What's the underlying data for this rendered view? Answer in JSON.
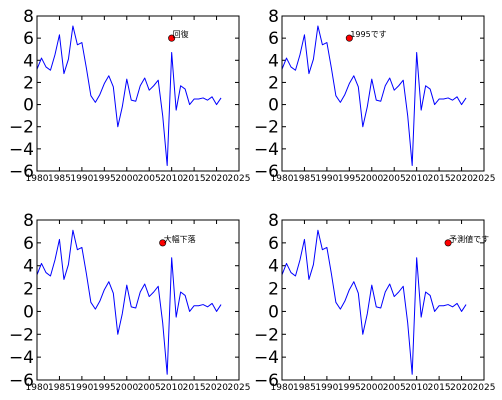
{
  "colors": {
    "line": "#0000ff",
    "marker": "#ff0000",
    "marker_edge": "#000000",
    "axes": "#000000",
    "background": "#ffffff"
  },
  "chart_data": [
    {
      "type": "line",
      "title": "",
      "xlabel": "",
      "ylabel": "",
      "xlim": [
        1980,
        2025
      ],
      "ylim": [
        -6,
        8
      ],
      "xticks": [
        "1980",
        "1985",
        "1990",
        "1995",
        "2000",
        "2005",
        "2010",
        "2015",
        "2020",
        "2025"
      ],
      "yticks": [
        "8",
        "6",
        "4",
        "2",
        "0",
        "−2",
        "−4",
        "−6"
      ],
      "grid": false,
      "legend": "none",
      "x": [
        1980,
        1981,
        1982,
        1983,
        1984,
        1985,
        1986,
        1987,
        1988,
        1989,
        1990,
        1991,
        1992,
        1993,
        1994,
        1995,
        1996,
        1997,
        1998,
        1999,
        2000,
        2001,
        2002,
        2003,
        2004,
        2005,
        2006,
        2007,
        2008,
        2009,
        2010,
        2011,
        2012,
        2013,
        2014,
        2015,
        2016,
        2017,
        2018,
        2019,
        2020,
        2021
      ],
      "series": [
        {
          "values": [
            3.2,
            4.2,
            3.4,
            3.1,
            4.5,
            6.3,
            2.8,
            4.1,
            7.1,
            5.4,
            5.6,
            3.3,
            0.8,
            0.2,
            0.9,
            1.9,
            2.6,
            1.6,
            -2.0,
            -0.2,
            2.3,
            0.4,
            0.3,
            1.7,
            2.4,
            1.3,
            1.7,
            2.2,
            -1.0,
            -5.5,
            4.7,
            -0.5,
            1.7,
            1.4,
            0.0,
            0.5,
            0.5,
            0.6,
            0.4,
            0.7,
            0.0,
            0.6
          ]
        }
      ],
      "annotation": {
        "x": 2010,
        "y": 6,
        "text": "回復"
      }
    },
    {
      "type": "line",
      "title": "",
      "xlabel": "",
      "ylabel": "",
      "xlim": [
        1980,
        2025
      ],
      "ylim": [
        -6,
        8
      ],
      "xticks": [
        "1980",
        "1985",
        "1990",
        "1995",
        "2000",
        "2005",
        "2010",
        "2015",
        "2020",
        "2025"
      ],
      "yticks": [
        "8",
        "6",
        "4",
        "2",
        "0",
        "−2",
        "−4",
        "−6"
      ],
      "grid": false,
      "legend": "none",
      "x": [
        1980,
        1981,
        1982,
        1983,
        1984,
        1985,
        1986,
        1987,
        1988,
        1989,
        1990,
        1991,
        1992,
        1993,
        1994,
        1995,
        1996,
        1997,
        1998,
        1999,
        2000,
        2001,
        2002,
        2003,
        2004,
        2005,
        2006,
        2007,
        2008,
        2009,
        2010,
        2011,
        2012,
        2013,
        2014,
        2015,
        2016,
        2017,
        2018,
        2019,
        2020,
        2021
      ],
      "series": [
        {
          "values": [
            3.2,
            4.2,
            3.4,
            3.1,
            4.5,
            6.3,
            2.8,
            4.1,
            7.1,
            5.4,
            5.6,
            3.3,
            0.8,
            0.2,
            0.9,
            1.9,
            2.6,
            1.6,
            -2.0,
            -0.2,
            2.3,
            0.4,
            0.3,
            1.7,
            2.4,
            1.3,
            1.7,
            2.2,
            -1.0,
            -5.5,
            4.7,
            -0.5,
            1.7,
            1.4,
            0.0,
            0.5,
            0.5,
            0.6,
            0.4,
            0.7,
            0.0,
            0.6
          ]
        }
      ],
      "annotation": {
        "x": 1995,
        "y": 6,
        "text": "1995です"
      }
    },
    {
      "type": "line",
      "title": "",
      "xlabel": "",
      "ylabel": "",
      "xlim": [
        1980,
        2025
      ],
      "ylim": [
        -6,
        8
      ],
      "xticks": [
        "1980",
        "1985",
        "1990",
        "1995",
        "2000",
        "2005",
        "2010",
        "2015",
        "2020",
        "2025"
      ],
      "yticks": [
        "8",
        "6",
        "4",
        "2",
        "0",
        "−2",
        "−4",
        "−6"
      ],
      "grid": false,
      "legend": "none",
      "x": [
        1980,
        1981,
        1982,
        1983,
        1984,
        1985,
        1986,
        1987,
        1988,
        1989,
        1990,
        1991,
        1992,
        1993,
        1994,
        1995,
        1996,
        1997,
        1998,
        1999,
        2000,
        2001,
        2002,
        2003,
        2004,
        2005,
        2006,
        2007,
        2008,
        2009,
        2010,
        2011,
        2012,
        2013,
        2014,
        2015,
        2016,
        2017,
        2018,
        2019,
        2020,
        2021
      ],
      "series": [
        {
          "values": [
            3.2,
            4.2,
            3.4,
            3.1,
            4.5,
            6.3,
            2.8,
            4.1,
            7.1,
            5.4,
            5.6,
            3.3,
            0.8,
            0.2,
            0.9,
            1.9,
            2.6,
            1.6,
            -2.0,
            -0.2,
            2.3,
            0.4,
            0.3,
            1.7,
            2.4,
            1.3,
            1.7,
            2.2,
            -1.0,
            -5.5,
            4.7,
            -0.5,
            1.7,
            1.4,
            0.0,
            0.5,
            0.5,
            0.6,
            0.4,
            0.7,
            0.0,
            0.6
          ]
        }
      ],
      "annotation": {
        "x": 2008,
        "y": 6,
        "text": "大幅下落"
      }
    },
    {
      "type": "line",
      "title": "",
      "xlabel": "",
      "ylabel": "",
      "xlim": [
        1980,
        2025
      ],
      "ylim": [
        -6,
        8
      ],
      "xticks": [
        "1980",
        "1985",
        "1990",
        "1995",
        "2000",
        "2005",
        "2010",
        "2015",
        "2020",
        "2025"
      ],
      "yticks": [
        "8",
        "6",
        "4",
        "2",
        "0",
        "−2",
        "−4",
        "−6"
      ],
      "grid": false,
      "legend": "none",
      "x": [
        1980,
        1981,
        1982,
        1983,
        1984,
        1985,
        1986,
        1987,
        1988,
        1989,
        1990,
        1991,
        1992,
        1993,
        1994,
        1995,
        1996,
        1997,
        1998,
        1999,
        2000,
        2001,
        2002,
        2003,
        2004,
        2005,
        2006,
        2007,
        2008,
        2009,
        2010,
        2011,
        2012,
        2013,
        2014,
        2015,
        2016,
        2017,
        2018,
        2019,
        2020,
        2021
      ],
      "series": [
        {
          "values": [
            3.2,
            4.2,
            3.4,
            3.1,
            4.5,
            6.3,
            2.8,
            4.1,
            7.1,
            5.4,
            5.6,
            3.3,
            0.8,
            0.2,
            0.9,
            1.9,
            2.6,
            1.6,
            -2.0,
            -0.2,
            2.3,
            0.4,
            0.3,
            1.7,
            2.4,
            1.3,
            1.7,
            2.2,
            -1.0,
            -5.5,
            4.7,
            -0.5,
            1.7,
            1.4,
            0.0,
            0.5,
            0.5,
            0.6,
            0.4,
            0.7,
            0.0,
            0.6
          ]
        }
      ],
      "annotation": {
        "x": 2017,
        "y": 6,
        "text": "予測値です"
      }
    }
  ]
}
